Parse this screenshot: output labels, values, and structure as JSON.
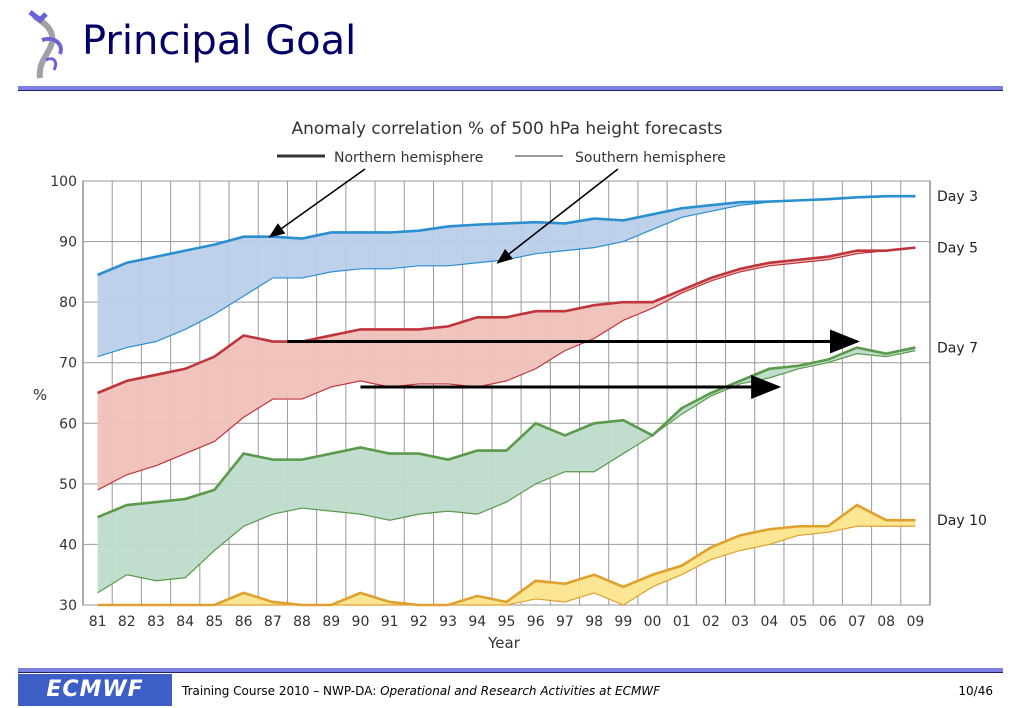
{
  "slide": {
    "title": "Principal Goal",
    "footer_prefix": "Training Course 2010 – NWP-DA: ",
    "footer_italic": "Operational and Research Activities at ECMWF",
    "page": "10/46",
    "logo_text": "ECMWF"
  },
  "colors": {
    "accent": "#7b7fe0",
    "title": "#000066",
    "logo": "#3c5ec6",
    "day3": "#2a8fcf",
    "day5": "#c0343c",
    "day7": "#5a9a4a",
    "day10": "#e0a030"
  },
  "chart_data": {
    "type": "area",
    "title": "Anomaly correlation % of 500 hPa height forecasts",
    "legend": [
      "Northern hemisphere",
      "Southern hemisphere"
    ],
    "legend_placement": "top-center",
    "xlabel": "Year",
    "ylabel": "%",
    "ylim": [
      30,
      100
    ],
    "yticks": [
      30,
      40,
      50,
      60,
      70,
      80,
      90,
      100
    ],
    "grid": true,
    "categories": [
      "81",
      "82",
      "83",
      "84",
      "85",
      "86",
      "87",
      "88",
      "89",
      "90",
      "91",
      "92",
      "93",
      "94",
      "95",
      "96",
      "97",
      "98",
      "99",
      "00",
      "01",
      "02",
      "03",
      "04",
      "05",
      "06",
      "07",
      "08",
      "09"
    ],
    "series": [
      {
        "name": "Day 3",
        "color": "#2a8fcf",
        "fill": "#b9cfea",
        "nh": [
          84.5,
          86.5,
          87.5,
          88.5,
          89.5,
          90.8,
          90.8,
          90.5,
          91.5,
          91.5,
          91.5,
          91.8,
          92.5,
          92.8,
          93.0,
          93.2,
          93.0,
          93.8,
          93.5,
          94.5,
          95.5,
          96.0,
          96.5,
          96.6,
          96.8,
          97.0,
          97.3,
          97.5,
          97.5
        ],
        "sh": [
          71.0,
          72.5,
          73.5,
          75.5,
          78.0,
          81.0,
          84.0,
          84.0,
          85.0,
          85.5,
          85.5,
          86.0,
          86.0,
          86.5,
          87.0,
          88.0,
          88.5,
          89.0,
          90.0,
          92.0,
          94.0,
          95.0,
          96.0,
          96.5,
          96.8,
          97.0,
          97.2,
          97.4,
          97.5
        ]
      },
      {
        "name": "Day 5",
        "color": "#c0343c",
        "fill": "#efc1b8",
        "nh": [
          65.0,
          67.0,
          68.0,
          69.0,
          71.0,
          74.5,
          73.5,
          73.5,
          74.5,
          75.5,
          75.5,
          75.5,
          76.0,
          77.5,
          77.5,
          78.5,
          78.5,
          79.5,
          80.0,
          80.0,
          82.0,
          84.0,
          85.5,
          86.5,
          87.0,
          87.5,
          88.5,
          88.5,
          89.0
        ],
        "sh": [
          49.0,
          51.5,
          53.0,
          55.0,
          57.0,
          61.0,
          64.0,
          64.0,
          66.0,
          67.0,
          66.0,
          66.5,
          66.5,
          66.0,
          67.0,
          69.0,
          72.0,
          74.0,
          77.0,
          79.0,
          81.5,
          83.5,
          85.0,
          86.0,
          86.5,
          87.0,
          88.0,
          88.5,
          89.0
        ]
      },
      {
        "name": "Day 7",
        "color": "#5a9a4a",
        "fill": "#bedbcb",
        "nh": [
          44.5,
          46.5,
          47.0,
          47.5,
          49.0,
          55.0,
          54.0,
          54.0,
          55.0,
          56.0,
          55.0,
          55.0,
          54.0,
          55.5,
          55.5,
          60.0,
          58.0,
          60.0,
          60.5,
          58.0,
          62.5,
          65.0,
          67.0,
          69.0,
          69.5,
          70.5,
          72.5,
          71.5,
          72.5
        ],
        "sh": [
          32.0,
          35.0,
          34.0,
          34.5,
          39.0,
          43.0,
          45.0,
          46.0,
          45.5,
          45.0,
          44.0,
          45.0,
          45.5,
          45.0,
          47.0,
          50.0,
          52.0,
          52.0,
          55.0,
          58.0,
          61.5,
          64.5,
          66.5,
          67.5,
          69.0,
          70.0,
          71.5,
          71.0,
          72.0
        ]
      },
      {
        "name": "Day 10",
        "color": "#e0a030",
        "fill": "#fbe58e",
        "nh": [
          30.0,
          30.0,
          30.0,
          30.0,
          30.0,
          32.0,
          30.5,
          30.0,
          30.0,
          32.0,
          30.5,
          30.0,
          30.0,
          31.5,
          30.5,
          34.0,
          33.5,
          35.0,
          33.0,
          35.0,
          36.5,
          39.5,
          41.5,
          42.5,
          43.0,
          43.0,
          46.5,
          44.0,
          44.0
        ],
        "sh": [
          30.0,
          30.0,
          30.0,
          30.0,
          30.0,
          30.0,
          30.0,
          30.0,
          30.0,
          30.0,
          30.0,
          30.0,
          30.0,
          30.0,
          30.0,
          31.0,
          30.5,
          32.0,
          30.0,
          33.0,
          35.0,
          37.5,
          39.0,
          40.0,
          41.5,
          42.0,
          43.0,
          43.0,
          43.0
        ]
      }
    ],
    "arrows": [
      {
        "from_year": 1987.5,
        "to_year": 2007.0,
        "value": 73.5
      },
      {
        "from_year": 1990.0,
        "to_year": 2004.3,
        "value": 66.0
      }
    ]
  }
}
